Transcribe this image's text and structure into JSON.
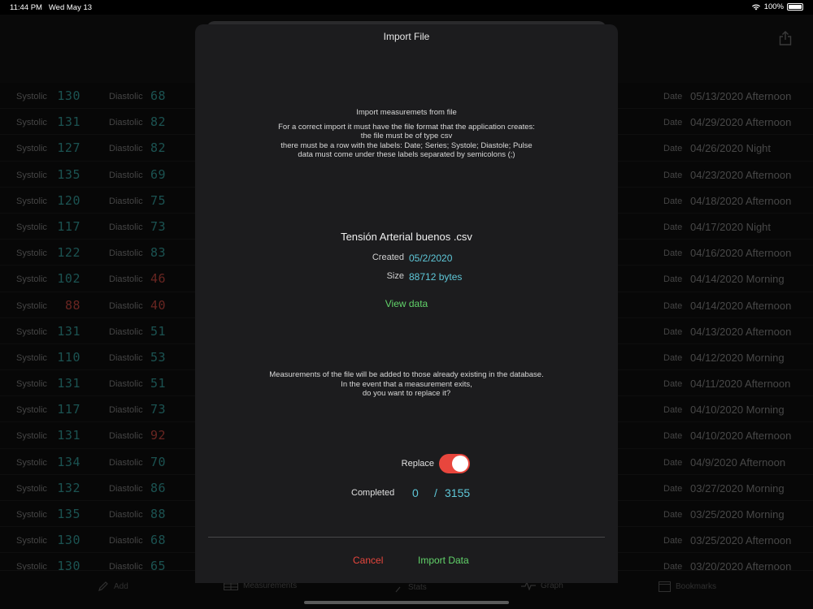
{
  "status": {
    "time": "11:44 PM",
    "date": "Wed May 13",
    "battery": "100%",
    "battery_level": 1.0
  },
  "labels": {
    "systolic": "Systolic",
    "diastolic": "Diastolic",
    "date": "Date"
  },
  "rows": [
    {
      "sys": "130",
      "sys_alert": false,
      "dia": "68",
      "dia_alert": false,
      "date": "05/13/2020 Afternoon"
    },
    {
      "sys": "131",
      "sys_alert": false,
      "dia": "82",
      "dia_alert": false,
      "date": "04/29/2020 Afternoon"
    },
    {
      "sys": "127",
      "sys_alert": false,
      "dia": "82",
      "dia_alert": false,
      "date": "04/26/2020 Night"
    },
    {
      "sys": "135",
      "sys_alert": false,
      "dia": "69",
      "dia_alert": false,
      "date": "04/23/2020 Afternoon"
    },
    {
      "sys": "120",
      "sys_alert": false,
      "dia": "75",
      "dia_alert": false,
      "date": "04/18/2020 Afternoon"
    },
    {
      "sys": "117",
      "sys_alert": false,
      "dia": "73",
      "dia_alert": false,
      "date": "04/17/2020 Night"
    },
    {
      "sys": "122",
      "sys_alert": false,
      "dia": "83",
      "dia_alert": false,
      "date": "04/16/2020 Afternoon"
    },
    {
      "sys": "102",
      "sys_alert": false,
      "dia": "46",
      "dia_alert": true,
      "date": "04/14/2020 Morning"
    },
    {
      "sys": "88",
      "sys_alert": true,
      "dia": "40",
      "dia_alert": true,
      "date": "04/14/2020 Afternoon"
    },
    {
      "sys": "131",
      "sys_alert": false,
      "dia": "51",
      "dia_alert": false,
      "date": "04/13/2020 Afternoon"
    },
    {
      "sys": "110",
      "sys_alert": false,
      "dia": "53",
      "dia_alert": false,
      "date": "04/12/2020 Morning"
    },
    {
      "sys": "131",
      "sys_alert": false,
      "dia": "51",
      "dia_alert": false,
      "date": "04/11/2020 Afternoon"
    },
    {
      "sys": "117",
      "sys_alert": false,
      "dia": "73",
      "dia_alert": false,
      "date": "04/10/2020 Morning"
    },
    {
      "sys": "131",
      "sys_alert": false,
      "dia": "92",
      "dia_alert": true,
      "date": "04/10/2020 Afternoon"
    },
    {
      "sys": "134",
      "sys_alert": false,
      "dia": "70",
      "dia_alert": false,
      "date": "04/9/2020 Afternoon"
    },
    {
      "sys": "132",
      "sys_alert": false,
      "dia": "86",
      "dia_alert": false,
      "date": "03/27/2020 Morning"
    },
    {
      "sys": "135",
      "sys_alert": false,
      "dia": "88",
      "dia_alert": false,
      "date": "03/25/2020 Morning"
    },
    {
      "sys": "130",
      "sys_alert": false,
      "dia": "68",
      "dia_alert": false,
      "date": "03/25/2020 Afternoon"
    },
    {
      "sys": "130",
      "sys_alert": false,
      "dia": "65",
      "dia_alert": false,
      "date": "03/20/2020 Afternoon"
    }
  ],
  "tabs": [
    {
      "label": "Add",
      "icon": "pencil-icon"
    },
    {
      "label": "Measurements",
      "icon": "table-icon"
    },
    {
      "label": "Stats",
      "icon": "sigma-icon"
    },
    {
      "label": "Graph",
      "icon": "pulse-icon"
    },
    {
      "label": "Bookmarks",
      "icon": "calendar-icon"
    }
  ],
  "modal": {
    "title": "Import File",
    "info_head": "Import measuremets from file",
    "info_lines": [
      "For a correct import it must have the file format that the application creates:",
      "the file must be of type csv",
      "there must be a row with the labels: Date; Series; Systole; Diastole; Pulse",
      "data must come under these labels separated by semicolons (;)"
    ],
    "file_name": "Tensión Arterial buenos .csv",
    "created_label": "Created",
    "created_value": "05/2/2020",
    "size_label": "Size",
    "size_value": "88712 bytes",
    "view_data": "View data",
    "notice_lines": [
      "Measurements of the file will be added to those already existing in the database.",
      "In the event that a measurement exits,",
      "do you want to replace it?"
    ],
    "replace_label": "Replace",
    "replace_on": true,
    "completed_label": "Completed",
    "completed_count": "0",
    "completed_sep": "/",
    "completed_total": "3155",
    "cancel": "Cancel",
    "import": "Import Data"
  },
  "colors": {
    "teal": "#2a7f7d",
    "alert_red": "#a03a33",
    "accent_cyan": "#5ec7d8",
    "green": "#62d36a",
    "red": "#e8463d"
  }
}
